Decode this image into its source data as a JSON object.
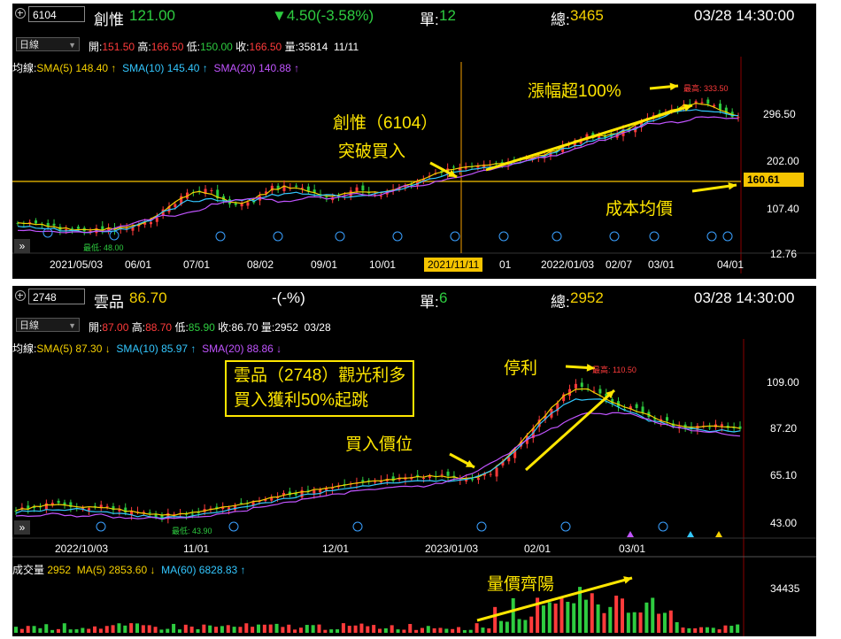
{
  "top": {
    "header": {
      "code": "6104",
      "name": "創惟",
      "price": "121.00",
      "change": "▼4.50(-3.58%)",
      "single_label": "單:",
      "single_value": "12",
      "total_label": "總:",
      "total_value": "3465",
      "datetime": "03/28 14:30:00"
    },
    "period": "日線",
    "ohlc": {
      "open_label": "開:",
      "open": "151.50",
      "high_label": "高:",
      "high": "166.50",
      "low_label": "低:",
      "low": "150.00",
      "close_label": "收:",
      "close": "166.50",
      "vol_label": "量:",
      "vol": "35814",
      "date": "11/11"
    },
    "ma": {
      "label": "均線:",
      "sma5": "SMA(5) 148.40 ↑",
      "sma10": "SMA(10) 145.40 ↑",
      "sma20": "SMA(20) 140.88 ↑"
    },
    "y_ticks": [
      "296.50",
      "202.00",
      "107.40",
      "12.76"
    ],
    "price_box": "160.61",
    "x_ticks": [
      "2021/05/03",
      "06/01",
      "07/01",
      "08/02",
      "09/01",
      "10/01",
      "01",
      "2022/01/03",
      "02/07",
      "03/01",
      "04/01"
    ],
    "date_box": "2021/11/11",
    "low_note": "最低: 48.00",
    "high_note": "最高: 333.50",
    "annotations": {
      "stock": "創惟（6104）",
      "breakout": "突破買入",
      "rise": "漲幅超100%",
      "cost": "成本均價"
    },
    "colors": {
      "up": "#ff3b3b",
      "down": "#2ecc40",
      "sma5": "#f5d000",
      "sma10": "#33c7ff",
      "sma20": "#c154ff",
      "annotation": "#ffe600"
    }
  },
  "bottom": {
    "header": {
      "code": "2748",
      "name": "雲品",
      "price": "86.70",
      "change": "-(-%)",
      "single_label": "單:",
      "single_value": "6",
      "total_label": "總:",
      "total_value": "2952",
      "datetime": "03/28 14:30:00"
    },
    "period": "日線",
    "ohlc": {
      "open_label": "開:",
      "open": "87.00",
      "high_label": "高:",
      "high": "88.70",
      "low_label": "低:",
      "low": "85.90",
      "close_label": "收:",
      "close": "86.70",
      "vol_label": "量:",
      "vol": "2952",
      "date": "03/28"
    },
    "ma": {
      "label": "均線:",
      "sma5": "SMA(5) 87.30 ↓",
      "sma10": "SMA(10) 85.97 ↑",
      "sma20": "SMA(20) 88.86 ↓"
    },
    "y_ticks": [
      "109.00",
      "87.20",
      "65.10",
      "43.00"
    ],
    "x_ticks": [
      "2022/10/03",
      "11/01",
      "12/01",
      "2023/01/03",
      "02/01",
      "03/01"
    ],
    "low_note": "最低: 43.90",
    "high_note": "最高: 110.50",
    "annotations": {
      "box_line1": "雲品（2748）觀光利多",
      "box_line2": "買入獲利50%起跳",
      "buy_price": "買入價位",
      "stop": "停利",
      "volume": "量價齊陽"
    },
    "volume": {
      "label": "成交量",
      "value": "2952",
      "ma5": "MA(5) 2853.60 ↓",
      "ma60": "MA(60) 6828.83 ↑",
      "y_tick": "34435"
    }
  }
}
